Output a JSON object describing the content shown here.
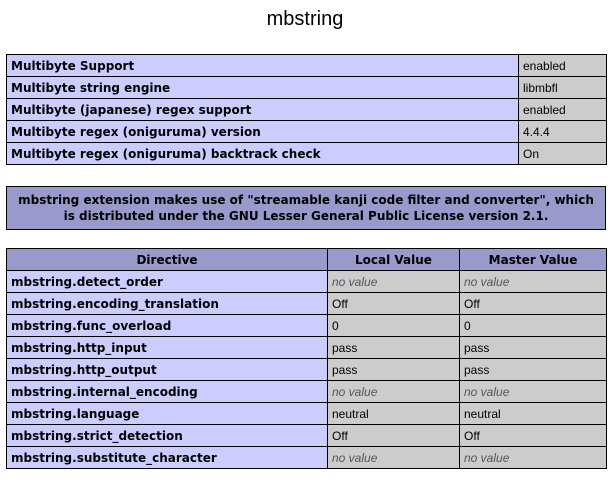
{
  "title": "mbstring",
  "info_rows": [
    {
      "label": "Multibyte Support",
      "value": "enabled"
    },
    {
      "label": "Multibyte string engine",
      "value": "libmbfl"
    },
    {
      "label": "Multibyte (japanese) regex support",
      "value": "enabled"
    },
    {
      "label": "Multibyte regex (oniguruma) version",
      "value": "4.4.4"
    },
    {
      "label": "Multibyte regex (oniguruma) backtrack check",
      "value": "On"
    }
  ],
  "license_note": "mbstring extension makes use of \"streamable kanji code filter and converter\", which is distributed under the GNU Lesser General Public License version 2.1.",
  "directives": {
    "headers": [
      "Directive",
      "Local Value",
      "Master Value"
    ],
    "rows": [
      {
        "name": "mbstring.detect_order",
        "local": "no value",
        "master": "no value",
        "empty": true
      },
      {
        "name": "mbstring.encoding_translation",
        "local": "Off",
        "master": "Off"
      },
      {
        "name": "mbstring.func_overload",
        "local": "0",
        "master": "0"
      },
      {
        "name": "mbstring.http_input",
        "local": "pass",
        "master": "pass"
      },
      {
        "name": "mbstring.http_output",
        "local": "pass",
        "master": "pass"
      },
      {
        "name": "mbstring.internal_encoding",
        "local": "no value",
        "master": "no value",
        "empty": true
      },
      {
        "name": "mbstring.language",
        "local": "neutral",
        "master": "neutral"
      },
      {
        "name": "mbstring.strict_detection",
        "local": "Off",
        "master": "Off"
      },
      {
        "name": "mbstring.substitute_character",
        "local": "no value",
        "master": "no value",
        "empty": true
      }
    ]
  },
  "colors": {
    "label_bg": "#ccccff",
    "value_bg": "#cccccc",
    "header_bg": "#9999cc"
  }
}
